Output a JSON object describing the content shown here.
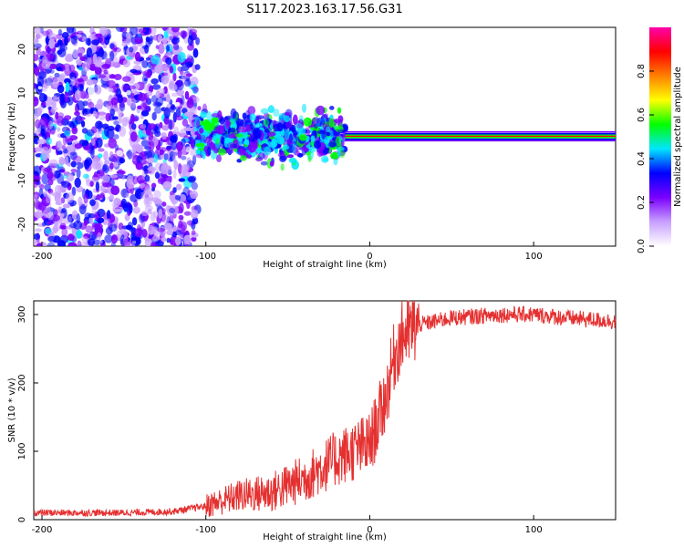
{
  "title": "S117.2023.163.17.56.G31",
  "chart_data": [
    {
      "type": "heatmap",
      "xlabel": "Height of straight line (km)",
      "ylabel": "Frequency (Hz)",
      "xlim": [
        -205,
        150
      ],
      "ylim": [
        -25,
        25
      ],
      "x_ticks": [
        -200,
        -100,
        0,
        100
      ],
      "y_ticks": [
        -20,
        -10,
        0,
        10,
        20
      ],
      "colorbar": {
        "label": "Normalized spectral amplitude",
        "range": [
          0,
          1
        ],
        "ticks": [
          0.0,
          0.2,
          0.4,
          0.6,
          0.8
        ],
        "colors": [
          "#ffffff",
          "#c8a0ff",
          "#7a00ff",
          "#0000ff",
          "#00e5ff",
          "#00ff00",
          "#ffff00",
          "#ff8000",
          "#ff0000",
          "#ff00aa"
        ]
      },
      "regions": [
        {
          "x_range": [
            -205,
            -105
          ],
          "freq_range": [
            -25,
            25
          ],
          "amplitude": "low, scattered"
        },
        {
          "x_range": [
            -105,
            -15
          ],
          "freq_range": [
            -8,
            7
          ],
          "amplitude": "medium clusters"
        },
        {
          "x_range": [
            -15,
            150
          ],
          "freq_range": [
            -0.5,
            0.5
          ],
          "amplitude": "high, narrow line near 0 Hz"
        }
      ]
    },
    {
      "type": "line",
      "xlabel": "Height of straight line (km)",
      "ylabel": "SNR (10 * v/v)",
      "xlim": [
        -205,
        150
      ],
      "ylim": [
        0,
        320
      ],
      "x_ticks": [
        -200,
        -100,
        0,
        100
      ],
      "y_ticks": [
        0,
        100,
        200,
        300
      ],
      "series": [
        {
          "color": "#e53030",
          "x": [
            -205,
            -180,
            -150,
            -120,
            -100,
            -80,
            -60,
            -40,
            -20,
            0,
            10,
            15,
            20,
            30,
            50,
            80,
            100,
            120,
            150
          ],
          "y": [
            10,
            10,
            10,
            12,
            20,
            35,
            40,
            60,
            90,
            110,
            180,
            240,
            270,
            285,
            295,
            300,
            300,
            295,
            290
          ]
        }
      ]
    }
  ]
}
